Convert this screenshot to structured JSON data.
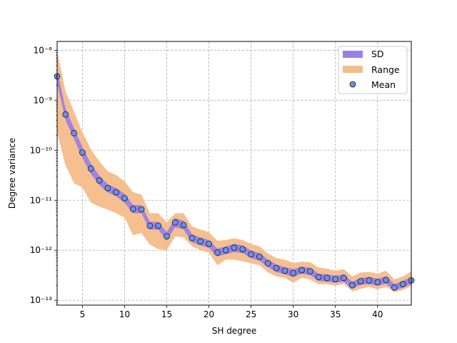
{
  "chart_data": {
    "type": "line",
    "xlabel": "SH degree",
    "ylabel": "Degree variance",
    "xlim": [
      2,
      44
    ],
    "ylim": [
      8e-14,
      1.5e-08
    ],
    "yscale": "log",
    "grid": true,
    "grid_style": "dashed",
    "legend_position": "top-right",
    "x_ticks": [
      5,
      10,
      15,
      20,
      25,
      30,
      35,
      40
    ],
    "x_tick_labels": [
      "5",
      "10",
      "15",
      "20",
      "25",
      "30",
      "35",
      "40"
    ],
    "y_ticks": [
      1e-13,
      1e-12,
      1e-11,
      1e-10,
      1e-09,
      1e-08
    ],
    "y_tick_labels": [
      "10⁻¹³",
      "10⁻¹²",
      "10⁻¹¹",
      "10⁻¹⁰",
      "10⁻⁹",
      "10⁻⁸"
    ],
    "x": [
      2,
      3,
      4,
      5,
      6,
      7,
      8,
      9,
      10,
      11,
      12,
      13,
      14,
      15,
      16,
      17,
      18,
      19,
      20,
      21,
      22,
      23,
      24,
      25,
      26,
      27,
      28,
      29,
      30,
      31,
      32,
      33,
      34,
      35,
      36,
      37,
      38,
      39,
      40,
      41,
      42,
      43,
      44
    ],
    "series": [
      {
        "name": "Mean",
        "kind": "scatter",
        "color": "#6a8fe8",
        "values": [
          3e-09,
          5.2e-10,
          2.2e-10,
          9e-11,
          4.3e-11,
          2.5e-11,
          1.75e-11,
          1.45e-11,
          1.1e-11,
          6.7e-12,
          6.6e-12,
          3.1e-12,
          3.1e-12,
          1.9e-12,
          3.6e-12,
          3.2e-12,
          1.75e-12,
          1.5e-12,
          1.35e-12,
          9e-13,
          1e-12,
          1.12e-12,
          1.05e-12,
          8.3e-13,
          7.4e-13,
          5.5e-13,
          4.4e-13,
          3.9e-13,
          3.5e-13,
          4e-13,
          3.8e-13,
          2.9e-13,
          2.8e-13,
          2.65e-13,
          2.8e-13,
          2e-13,
          2.4e-13,
          2.5e-13,
          2.3e-13,
          2.55e-13,
          1.8e-13,
          2.1e-13,
          2.5e-13
        ]
      },
      {
        "name": "SD",
        "kind": "band",
        "color": "#9c7fe6",
        "lower": [
          2.2e-09,
          4e-10,
          1.7e-10,
          7e-11,
          3.4e-11,
          2e-11,
          1.45e-11,
          1.2e-11,
          9e-12,
          5.5e-12,
          5.5e-12,
          2.6e-12,
          2.6e-12,
          1.55e-12,
          2.9e-12,
          2.6e-12,
          1.45e-12,
          1.25e-12,
          1.12e-12,
          7.5e-13,
          8.3e-13,
          9.3e-13,
          8.8e-13,
          7e-13,
          6.2e-13,
          4.6e-13,
          3.7e-13,
          3.3e-13,
          2.9e-13,
          3.4e-13,
          3.2e-13,
          2.45e-13,
          2.35e-13,
          2.25e-13,
          2.35e-13,
          1.7e-13,
          2.05e-13,
          2.1e-13,
          1.95e-13,
          2.15e-13,
          1.55e-13,
          1.8e-13,
          2.1e-13
        ],
        "upper": [
          4e-09,
          6.8e-10,
          2.8e-10,
          1.15e-10,
          5.4e-11,
          3.1e-11,
          2.1e-11,
          1.75e-11,
          1.35e-11,
          8.1e-12,
          7.9e-12,
          3.7e-12,
          3.7e-12,
          2.3e-12,
          4.4e-12,
          3.9e-12,
          2.1e-12,
          1.8e-12,
          1.6e-12,
          1.08e-12,
          1.2e-12,
          1.35e-12,
          1.25e-12,
          9.9e-13,
          8.8e-13,
          6.5e-13,
          5.2e-13,
          4.6e-13,
          4.2e-13,
          4.7e-13,
          4.5e-13,
          3.4e-13,
          3.3e-13,
          3.1e-13,
          3.3e-13,
          2.35e-13,
          2.8e-13,
          2.95e-13,
          2.7e-13,
          3e-13,
          2.1e-13,
          2.45e-13,
          2.9e-13
        ]
      },
      {
        "name": "Range",
        "kind": "band",
        "color": "#f4bc8a",
        "lower": [
          2.2e-10,
          5e-11,
          2.2e-11,
          1.8e-11,
          9e-12,
          7.5e-12,
          6.5e-12,
          5.5e-12,
          4.5e-12,
          2e-12,
          2.2e-12,
          1.3e-12,
          1.05e-12,
          1e-12,
          1.9e-12,
          1.8e-12,
          1.2e-12,
          1e-12,
          9e-13,
          5e-13,
          6.5e-13,
          6.5e-13,
          6e-13,
          5.5e-13,
          5e-13,
          3.6e-13,
          3e-13,
          2.8e-13,
          2.25e-13,
          2.8e-13,
          2.6e-13,
          2.1e-13,
          2.1e-13,
          1.95e-13,
          2.1e-13,
          1.5e-13,
          1.7e-13,
          1.85e-13,
          1.65e-13,
          1.85e-13,
          1.45e-13,
          1.6e-13,
          1.9e-13
        ],
        "upper": [
          1e-08,
          1.5e-09,
          6e-10,
          2.3e-10,
          1.05e-10,
          6e-11,
          3.8e-11,
          3.2e-11,
          2.4e-11,
          1.45e-11,
          1.3e-11,
          5.5e-12,
          5.5e-12,
          3.6e-12,
          5.5e-12,
          5.5e-12,
          3e-12,
          2.6e-12,
          2.3e-12,
          1.55e-12,
          1.6e-12,
          1.75e-12,
          1.6e-12,
          1.35e-12,
          1.2e-12,
          8.6e-13,
          7e-13,
          6.5e-13,
          5.6e-13,
          5.9e-13,
          5.8e-13,
          4.5e-13,
          4.3e-13,
          3.9e-13,
          4.2e-13,
          3e-13,
          3.6e-13,
          3.7e-13,
          3.4e-13,
          3.9e-13,
          2.6e-13,
          3e-13,
          3.8e-13
        ]
      }
    ]
  },
  "legend": {
    "sd_label": "SD",
    "range_label": "Range",
    "mean_label": "Mean"
  }
}
